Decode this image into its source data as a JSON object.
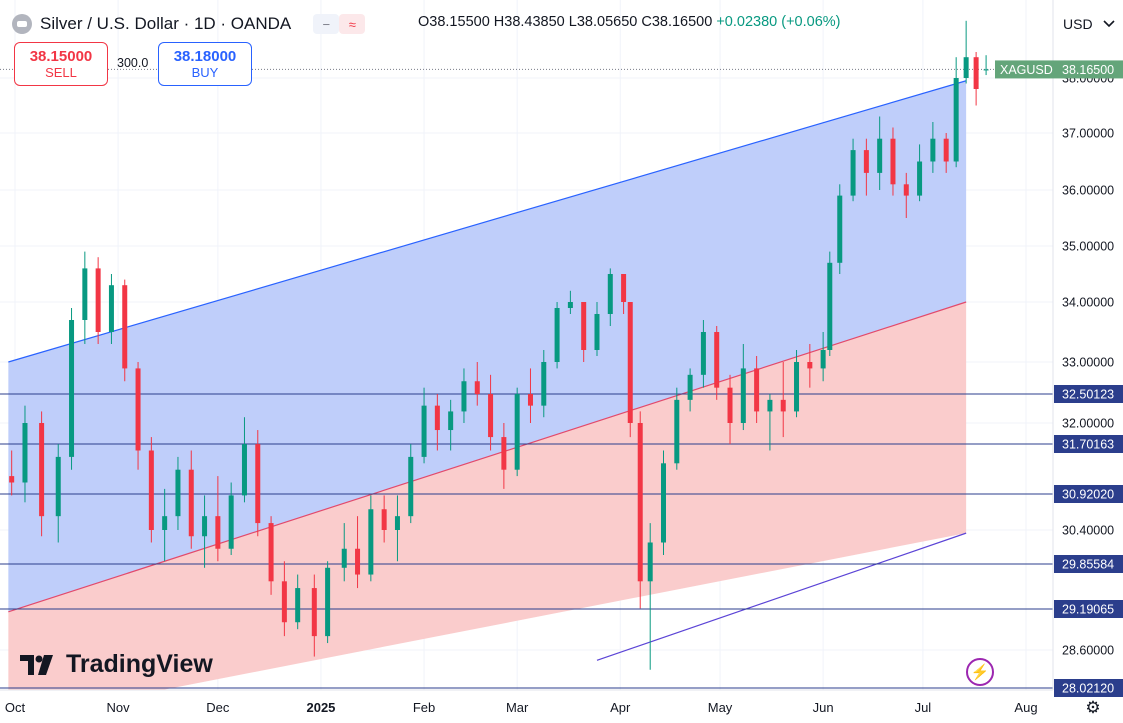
{
  "header": {
    "title": "Silver / U.S. Dollar · 1D · OANDA",
    "btn_a": "−",
    "btn_b": "≈",
    "open": "O38.15500",
    "high": "H38.43850",
    "low": "L38.05650",
    "close": "C38.16500",
    "change": "+0.02380 (+0.06%)"
  },
  "trade": {
    "sell_price": "38.15000",
    "sell_label": "SELL",
    "spread": "300.0",
    "buy_price": "38.18000",
    "buy_label": "BUY"
  },
  "currency": "USD",
  "brand": "TradingView",
  "colors": {
    "up": "#089981",
    "down": "#f23645",
    "upper_channel_fill": "#bccbfa",
    "lower_channel_fill": "#fac9c9",
    "channel_line": "#2962ff",
    "level_line": "#2b3e8c",
    "price_tag": "#64a57a"
  },
  "chart_data": {
    "type": "candlestick",
    "symbol": "XAGUSD",
    "last_price": 38.165,
    "x_ticks": [
      "Oct",
      "Nov",
      "Dec",
      "2025",
      "Feb",
      "Mar",
      "Apr",
      "May",
      "Jun",
      "Jul",
      "Aug"
    ],
    "y_ticks": [
      "28.60000",
      "30.40000",
      "32.00000",
      "33.00000",
      "34.00000",
      "35.00000",
      "36.00000",
      "37.00000",
      "38.00000"
    ],
    "levels": [
      "32.50123",
      "31.70163",
      "30.92020",
      "29.85584",
      "29.19065",
      "28.02120"
    ],
    "candles": [
      {
        "date": "2024-09-30",
        "o": 31.2,
        "h": 31.6,
        "l": 30.9,
        "c": 31.1
      },
      {
        "date": "2024-10-04",
        "o": 31.1,
        "h": 32.3,
        "l": 30.8,
        "c": 32.0
      },
      {
        "date": "2024-10-09",
        "o": 32.0,
        "h": 32.2,
        "l": 30.3,
        "c": 30.6
      },
      {
        "date": "2024-10-14",
        "o": 30.6,
        "h": 31.7,
        "l": 30.2,
        "c": 31.5
      },
      {
        "date": "2024-10-18",
        "o": 31.5,
        "h": 33.9,
        "l": 31.3,
        "c": 33.7
      },
      {
        "date": "2024-10-22",
        "o": 33.7,
        "h": 34.9,
        "l": 33.3,
        "c": 34.6
      },
      {
        "date": "2024-10-26",
        "o": 34.6,
        "h": 34.8,
        "l": 33.3,
        "c": 33.5
      },
      {
        "date": "2024-10-30",
        "o": 33.5,
        "h": 34.5,
        "l": 33.3,
        "c": 34.3
      },
      {
        "date": "2024-11-03",
        "o": 34.3,
        "h": 34.4,
        "l": 32.7,
        "c": 32.9
      },
      {
        "date": "2024-11-07",
        "o": 32.9,
        "h": 33.0,
        "l": 31.3,
        "c": 31.6
      },
      {
        "date": "2024-11-11",
        "o": 31.6,
        "h": 31.8,
        "l": 30.2,
        "c": 30.4
      },
      {
        "date": "2024-11-15",
        "o": 30.4,
        "h": 31.0,
        "l": 29.9,
        "c": 30.6
      },
      {
        "date": "2024-11-19",
        "o": 30.6,
        "h": 31.5,
        "l": 30.4,
        "c": 31.3
      },
      {
        "date": "2024-11-23",
        "o": 31.3,
        "h": 31.6,
        "l": 30.1,
        "c": 30.3
      },
      {
        "date": "2024-11-27",
        "o": 30.3,
        "h": 30.9,
        "l": 29.8,
        "c": 30.6
      },
      {
        "date": "2024-12-01",
        "o": 30.6,
        "h": 31.2,
        "l": 29.9,
        "c": 30.1
      },
      {
        "date": "2024-12-05",
        "o": 30.1,
        "h": 31.1,
        "l": 30.0,
        "c": 30.9
      },
      {
        "date": "2024-12-09",
        "o": 30.9,
        "h": 32.1,
        "l": 30.8,
        "c": 31.7
      },
      {
        "date": "2024-12-13",
        "o": 31.7,
        "h": 31.9,
        "l": 30.3,
        "c": 30.5
      },
      {
        "date": "2024-12-17",
        "o": 30.5,
        "h": 30.6,
        "l": 29.4,
        "c": 29.6
      },
      {
        "date": "2024-12-21",
        "o": 29.6,
        "h": 29.9,
        "l": 28.8,
        "c": 29.0
      },
      {
        "date": "2024-12-25",
        "o": 29.0,
        "h": 29.7,
        "l": 28.9,
        "c": 29.5
      },
      {
        "date": "2024-12-30",
        "o": 29.5,
        "h": 29.7,
        "l": 28.5,
        "c": 28.8
      },
      {
        "date": "2025-01-03",
        "o": 28.8,
        "h": 29.9,
        "l": 28.7,
        "c": 29.8
      },
      {
        "date": "2025-01-08",
        "o": 29.8,
        "h": 30.5,
        "l": 29.6,
        "c": 30.1
      },
      {
        "date": "2025-01-12",
        "o": 30.1,
        "h": 30.6,
        "l": 29.5,
        "c": 29.7
      },
      {
        "date": "2025-01-16",
        "o": 29.7,
        "h": 30.9,
        "l": 29.6,
        "c": 30.7
      },
      {
        "date": "2025-01-20",
        "o": 30.7,
        "h": 30.9,
        "l": 30.2,
        "c": 30.4
      },
      {
        "date": "2025-01-24",
        "o": 30.4,
        "h": 30.9,
        "l": 29.9,
        "c": 30.6
      },
      {
        "date": "2025-01-28",
        "o": 30.6,
        "h": 31.7,
        "l": 30.5,
        "c": 31.5
      },
      {
        "date": "2025-02-01",
        "o": 31.5,
        "h": 32.6,
        "l": 31.4,
        "c": 32.3
      },
      {
        "date": "2025-02-05",
        "o": 32.3,
        "h": 32.5,
        "l": 31.6,
        "c": 31.9
      },
      {
        "date": "2025-02-09",
        "o": 31.9,
        "h": 32.4,
        "l": 31.6,
        "c": 32.2
      },
      {
        "date": "2025-02-13",
        "o": 32.2,
        "h": 32.9,
        "l": 32.0,
        "c": 32.7
      },
      {
        "date": "2025-02-17",
        "o": 32.7,
        "h": 33.0,
        "l": 32.3,
        "c": 32.5
      },
      {
        "date": "2025-02-21",
        "o": 32.5,
        "h": 32.8,
        "l": 31.6,
        "c": 31.8
      },
      {
        "date": "2025-02-25",
        "o": 31.8,
        "h": 32.0,
        "l": 31.0,
        "c": 31.3
      },
      {
        "date": "2025-03-01",
        "o": 31.3,
        "h": 32.6,
        "l": 31.2,
        "c": 32.5
      },
      {
        "date": "2025-03-05",
        "o": 32.5,
        "h": 32.9,
        "l": 32.0,
        "c": 32.3
      },
      {
        "date": "2025-03-09",
        "o": 32.3,
        "h": 33.2,
        "l": 32.1,
        "c": 33.0
      },
      {
        "date": "2025-03-13",
        "o": 33.0,
        "h": 34.0,
        "l": 32.9,
        "c": 33.9
      },
      {
        "date": "2025-03-17",
        "o": 33.9,
        "h": 34.2,
        "l": 33.8,
        "c": 34.0
      },
      {
        "date": "2025-03-21",
        "o": 34.0,
        "h": 34.0,
        "l": 33.0,
        "c": 33.2
      },
      {
        "date": "2025-03-25",
        "o": 33.2,
        "h": 34.0,
        "l": 33.1,
        "c": 33.8
      },
      {
        "date": "2025-03-29",
        "o": 33.8,
        "h": 34.6,
        "l": 33.6,
        "c": 34.5
      },
      {
        "date": "2025-04-02",
        "o": 34.5,
        "h": 34.5,
        "l": 33.8,
        "c": 34.0
      },
      {
        "date": "2025-04-04",
        "o": 34.0,
        "h": 34.0,
        "l": 31.8,
        "c": 32.0
      },
      {
        "date": "2025-04-07",
        "o": 32.0,
        "h": 32.2,
        "l": 29.2,
        "c": 29.6
      },
      {
        "date": "2025-04-10",
        "o": 29.6,
        "h": 30.5,
        "l": 28.3,
        "c": 30.2
      },
      {
        "date": "2025-04-14",
        "o": 30.2,
        "h": 31.6,
        "l": 30.0,
        "c": 31.4
      },
      {
        "date": "2025-04-18",
        "o": 31.4,
        "h": 32.6,
        "l": 31.3,
        "c": 32.4
      },
      {
        "date": "2025-04-22",
        "o": 32.4,
        "h": 32.9,
        "l": 32.2,
        "c": 32.8
      },
      {
        "date": "2025-04-26",
        "o": 32.8,
        "h": 33.7,
        "l": 32.6,
        "c": 33.5
      },
      {
        "date": "2025-04-30",
        "o": 33.5,
        "h": 33.6,
        "l": 32.4,
        "c": 32.6
      },
      {
        "date": "2025-05-04",
        "o": 32.6,
        "h": 32.8,
        "l": 31.7,
        "c": 32.0
      },
      {
        "date": "2025-05-08",
        "o": 32.0,
        "h": 33.3,
        "l": 31.9,
        "c": 32.9
      },
      {
        "date": "2025-05-12",
        "o": 32.9,
        "h": 33.1,
        "l": 32.0,
        "c": 32.2
      },
      {
        "date": "2025-05-16",
        "o": 32.2,
        "h": 32.5,
        "l": 31.6,
        "c": 32.4
      },
      {
        "date": "2025-05-20",
        "o": 32.4,
        "h": 33.0,
        "l": 31.8,
        "c": 32.2
      },
      {
        "date": "2025-05-24",
        "o": 32.2,
        "h": 33.2,
        "l": 32.1,
        "c": 33.0
      },
      {
        "date": "2025-05-28",
        "o": 33.0,
        "h": 33.3,
        "l": 32.6,
        "c": 32.9
      },
      {
        "date": "2025-06-01",
        "o": 32.9,
        "h": 33.5,
        "l": 32.7,
        "c": 33.2
      },
      {
        "date": "2025-06-03",
        "o": 33.2,
        "h": 34.9,
        "l": 33.1,
        "c": 34.7
      },
      {
        "date": "2025-06-06",
        "o": 34.7,
        "h": 36.1,
        "l": 34.5,
        "c": 35.9
      },
      {
        "date": "2025-06-10",
        "o": 35.9,
        "h": 36.9,
        "l": 35.8,
        "c": 36.7
      },
      {
        "date": "2025-06-14",
        "o": 36.7,
        "h": 36.9,
        "l": 35.9,
        "c": 36.3
      },
      {
        "date": "2025-06-18",
        "o": 36.3,
        "h": 37.3,
        "l": 36.0,
        "c": 36.9
      },
      {
        "date": "2025-06-22",
        "o": 36.9,
        "h": 37.1,
        "l": 35.9,
        "c": 36.1
      },
      {
        "date": "2025-06-26",
        "o": 36.1,
        "h": 36.3,
        "l": 35.5,
        "c": 35.9
      },
      {
        "date": "2025-06-30",
        "o": 35.9,
        "h": 36.8,
        "l": 35.8,
        "c": 36.5
      },
      {
        "date": "2025-07-04",
        "o": 36.5,
        "h": 37.2,
        "l": 36.3,
        "c": 36.9
      },
      {
        "date": "2025-07-08",
        "o": 36.9,
        "h": 37.0,
        "l": 36.3,
        "c": 36.5
      },
      {
        "date": "2025-07-11",
        "o": 36.5,
        "h": 38.4,
        "l": 36.4,
        "c": 38.0
      },
      {
        "date": "2025-07-14",
        "o": 38.0,
        "h": 39.1,
        "l": 37.9,
        "c": 38.4
      },
      {
        "date": "2025-07-17",
        "o": 38.4,
        "h": 38.5,
        "l": 37.5,
        "c": 37.8
      },
      {
        "date": "2025-07-20",
        "o": 38.155,
        "h": 38.4385,
        "l": 38.0565,
        "c": 38.165
      }
    ]
  }
}
